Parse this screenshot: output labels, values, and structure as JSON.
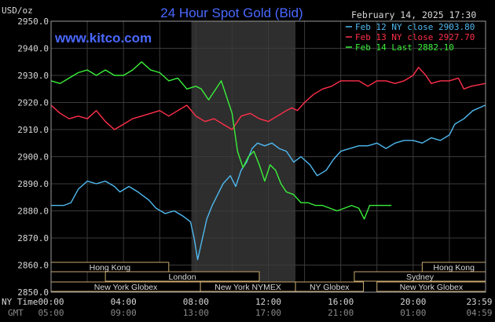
{
  "chart_data": {
    "type": "line",
    "title": "24 Hour Spot Gold (Bid)",
    "watermark": "www.kitco.com",
    "date_label": "February 14, 2025 17:30",
    "ylabel": "USD/oz",
    "ylim": [
      2850,
      2950
    ],
    "y_ticks": [
      "2950.0",
      "2940.0",
      "2930.0",
      "2920.0",
      "2910.0",
      "2900.0",
      "2890.0",
      "2880.0",
      "2870.0",
      "2860.0",
      "2850.0"
    ],
    "x_ticks_ny": [
      "00:00",
      "04:00",
      "08:00",
      "12:00",
      "16:00",
      "20:00",
      "23:59"
    ],
    "x_ticks_gmt": [
      "05:00",
      "09:00",
      "13:00",
      "17:00",
      "21:00",
      "01:00",
      "04:59"
    ],
    "x_row_labels": {
      "ny": "NY Time",
      "gmt": "GMT"
    },
    "grid": true,
    "highlight_window_hours": [
      7.75,
      13.5
    ],
    "legend": [
      {
        "label": "Feb 12 NY close 2903.80",
        "color": "#4fb9f0"
      },
      {
        "label": "Feb 13 NY close 2927.70",
        "color": "#ff2f4a"
      },
      {
        "label": "Feb 14 Last 2882.10",
        "color": "#3af03a"
      }
    ],
    "series": [
      {
        "color": "#4fb9f0",
        "points": [
          [
            0,
            2882
          ],
          [
            0.7,
            2882
          ],
          [
            1.1,
            2883
          ],
          [
            1.5,
            2888
          ],
          [
            2.0,
            2891
          ],
          [
            2.5,
            2890
          ],
          [
            3.0,
            2891
          ],
          [
            3.5,
            2889
          ],
          [
            3.8,
            2887
          ],
          [
            4.3,
            2889
          ],
          [
            4.8,
            2887
          ],
          [
            5.4,
            2884
          ],
          [
            5.8,
            2881
          ],
          [
            6.3,
            2879
          ],
          [
            6.8,
            2880
          ],
          [
            7.3,
            2878
          ],
          [
            7.7,
            2876
          ],
          [
            7.9,
            2870
          ],
          [
            8.1,
            2862
          ],
          [
            8.3,
            2868
          ],
          [
            8.6,
            2877
          ],
          [
            8.9,
            2882
          ],
          [
            9.2,
            2886
          ],
          [
            9.5,
            2890
          ],
          [
            9.9,
            2893
          ],
          [
            10.2,
            2889
          ],
          [
            10.5,
            2895
          ],
          [
            10.8,
            2898
          ],
          [
            11.1,
            2903
          ],
          [
            11.4,
            2905
          ],
          [
            11.8,
            2904
          ],
          [
            12.2,
            2905
          ],
          [
            12.6,
            2903
          ],
          [
            13.0,
            2902
          ],
          [
            13.4,
            2898
          ],
          [
            13.8,
            2900
          ],
          [
            14.3,
            2897
          ],
          [
            14.7,
            2893
          ],
          [
            15.2,
            2895
          ],
          [
            15.6,
            2899
          ],
          [
            16.0,
            2902
          ],
          [
            16.5,
            2903
          ],
          [
            17.0,
            2904
          ],
          [
            17.5,
            2904
          ],
          [
            18.0,
            2905
          ],
          [
            18.5,
            2903
          ],
          [
            19.0,
            2905
          ],
          [
            19.5,
            2906
          ],
          [
            20.0,
            2906
          ],
          [
            20.5,
            2905
          ],
          [
            21.0,
            2907
          ],
          [
            21.5,
            2906
          ],
          [
            22.0,
            2908
          ],
          [
            22.3,
            2912
          ],
          [
            22.8,
            2914
          ],
          [
            23.3,
            2917
          ],
          [
            23.98,
            2919
          ]
        ]
      },
      {
        "color": "#ff2f4a",
        "points": [
          [
            0,
            2919
          ],
          [
            0.5,
            2916
          ],
          [
            1.0,
            2914
          ],
          [
            1.5,
            2915
          ],
          [
            2.0,
            2914
          ],
          [
            2.5,
            2917
          ],
          [
            3.0,
            2913
          ],
          [
            3.5,
            2910
          ],
          [
            4.0,
            2912
          ],
          [
            4.5,
            2914
          ],
          [
            5.0,
            2915
          ],
          [
            5.5,
            2916
          ],
          [
            6.0,
            2917
          ],
          [
            6.5,
            2915
          ],
          [
            7.0,
            2917
          ],
          [
            7.5,
            2919
          ],
          [
            8.0,
            2915
          ],
          [
            8.5,
            2913
          ],
          [
            9.0,
            2914
          ],
          [
            9.5,
            2912
          ],
          [
            10.0,
            2910
          ],
          [
            10.5,
            2915
          ],
          [
            11.0,
            2916
          ],
          [
            11.5,
            2914
          ],
          [
            12.0,
            2913
          ],
          [
            12.5,
            2915
          ],
          [
            13.0,
            2917
          ],
          [
            13.3,
            2918
          ],
          [
            13.6,
            2917
          ],
          [
            14.0,
            2920
          ],
          [
            14.5,
            2923
          ],
          [
            15.0,
            2925
          ],
          [
            15.5,
            2926
          ],
          [
            16.0,
            2928
          ],
          [
            16.5,
            2928
          ],
          [
            17.0,
            2928
          ],
          [
            17.5,
            2926
          ],
          [
            18.0,
            2928
          ],
          [
            18.5,
            2928
          ],
          [
            19.0,
            2927
          ],
          [
            19.5,
            2928
          ],
          [
            20.0,
            2930
          ],
          [
            20.3,
            2933
          ],
          [
            20.7,
            2930
          ],
          [
            21.0,
            2927
          ],
          [
            21.5,
            2928
          ],
          [
            22.0,
            2928
          ],
          [
            22.5,
            2929
          ],
          [
            22.8,
            2925
          ],
          [
            23.2,
            2926
          ],
          [
            23.98,
            2927
          ]
        ]
      },
      {
        "color": "#3af03a",
        "points": [
          [
            0,
            2928
          ],
          [
            0.5,
            2927
          ],
          [
            1.0,
            2929
          ],
          [
            1.5,
            2931
          ],
          [
            2.0,
            2932
          ],
          [
            2.5,
            2930
          ],
          [
            3.0,
            2932
          ],
          [
            3.5,
            2930
          ],
          [
            4.0,
            2930
          ],
          [
            4.5,
            2932
          ],
          [
            5.0,
            2935
          ],
          [
            5.5,
            2932
          ],
          [
            6.0,
            2931
          ],
          [
            6.5,
            2928
          ],
          [
            7.0,
            2929
          ],
          [
            7.5,
            2925
          ],
          [
            8.0,
            2926
          ],
          [
            8.3,
            2925
          ],
          [
            8.7,
            2921
          ],
          [
            9.0,
            2924
          ],
          [
            9.4,
            2928
          ],
          [
            9.7,
            2922
          ],
          [
            10.0,
            2916
          ],
          [
            10.3,
            2902
          ],
          [
            10.6,
            2896
          ],
          [
            10.9,
            2900
          ],
          [
            11.2,
            2902
          ],
          [
            11.5,
            2897
          ],
          [
            11.8,
            2891
          ],
          [
            12.1,
            2897
          ],
          [
            12.4,
            2895
          ],
          [
            12.7,
            2890
          ],
          [
            13.0,
            2887
          ],
          [
            13.4,
            2886
          ],
          [
            13.8,
            2883
          ],
          [
            14.2,
            2883
          ],
          [
            14.6,
            2882
          ],
          [
            15.0,
            2882
          ],
          [
            15.4,
            2881
          ],
          [
            15.8,
            2880
          ],
          [
            16.2,
            2881
          ],
          [
            16.6,
            2882
          ],
          [
            17.0,
            2881
          ],
          [
            17.3,
            2877
          ],
          [
            17.6,
            2882
          ],
          [
            18.0,
            2882
          ],
          [
            18.4,
            2882
          ],
          [
            18.8,
            2882
          ]
        ]
      }
    ],
    "markets": [
      {
        "name": "Hong Kong",
        "start": 0,
        "end": 6.5,
        "row": 0
      },
      {
        "name": "Hong Kong",
        "start": 20.5,
        "end": 24,
        "row": 0
      },
      {
        "name": "London",
        "start": 3,
        "end": 11.5,
        "row": 1
      },
      {
        "name": "Sydney",
        "start": 16.75,
        "end": 24,
        "row": 1
      },
      {
        "name": "New York Globex",
        "start": 0,
        "end": 8.25,
        "row": 2
      },
      {
        "name": "New York NYMEX",
        "start": 8.25,
        "end": 13.5,
        "row": 2
      },
      {
        "name": "NY Globex",
        "start": 13.5,
        "end": 17.25,
        "row": 2
      },
      {
        "name": "New York Globex",
        "start": 18,
        "end": 24,
        "row": 2
      }
    ]
  }
}
